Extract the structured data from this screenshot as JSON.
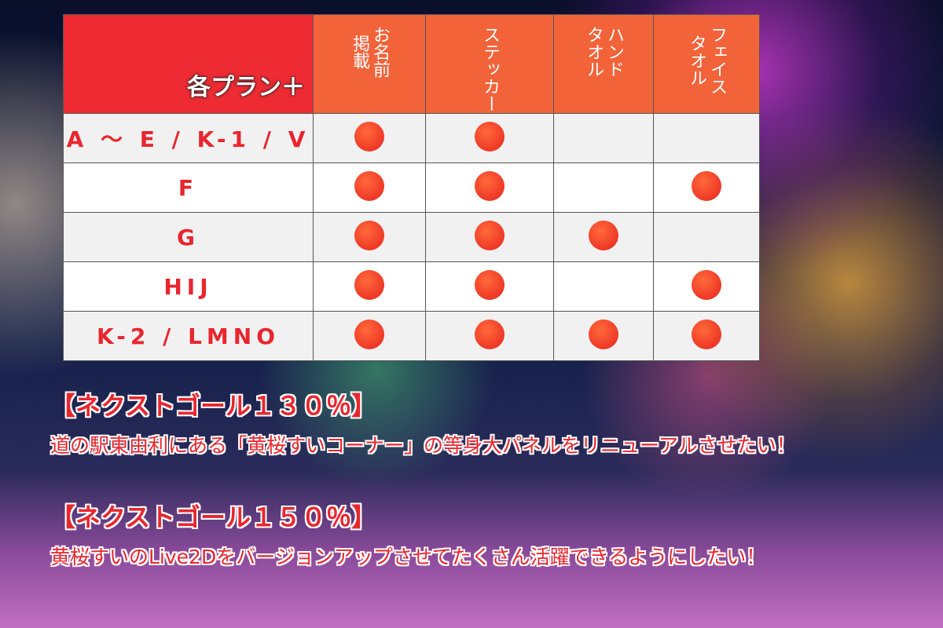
{
  "table": {
    "corner": "各プラン＋",
    "columns": [
      [
        "お名前",
        "掲載"
      ],
      [
        "ステッカー"
      ],
      [
        "ハンド",
        "タオル"
      ],
      [
        "フェイス",
        "タオル"
      ]
    ],
    "rows": [
      {
        "label": "A ～ E / K-1 / V",
        "included": [
          true,
          true,
          false,
          false
        ]
      },
      {
        "label": "F",
        "included": [
          true,
          true,
          false,
          true
        ]
      },
      {
        "label": "G",
        "included": [
          true,
          true,
          true,
          false
        ]
      },
      {
        "label": "HIJ",
        "included": [
          true,
          true,
          false,
          true
        ]
      },
      {
        "label": "K-2 / LMNO",
        "included": [
          true,
          true,
          true,
          true
        ]
      }
    ]
  },
  "goals": [
    {
      "heading": "【ネクストゴール１３０％】",
      "text": "道の駅東由利にある「黄桜すいコーナー」の等身大パネルをリニューアルさせたい！"
    },
    {
      "heading": "【ネクストゴール１５０％】",
      "text": "黄桜すいのLive2Dをバージョンアップさせてたくさん活躍できるようにしたい！"
    }
  ]
}
